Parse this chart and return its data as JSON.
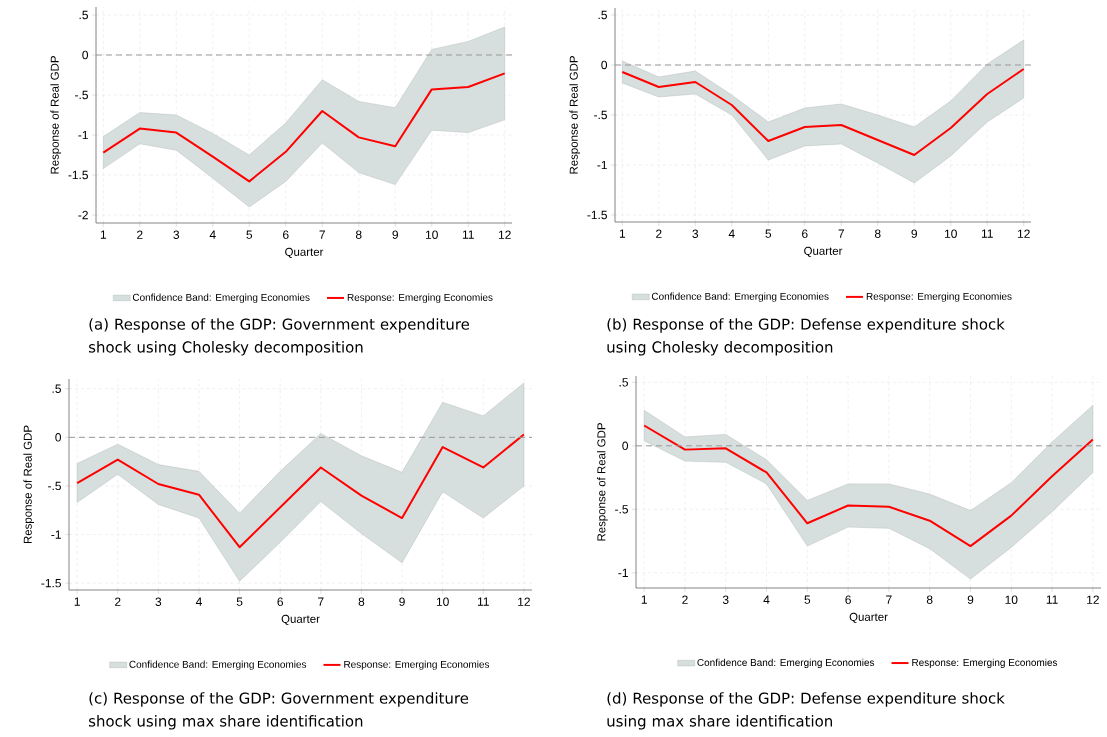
{
  "chart_data": [
    {
      "type": "line",
      "xlabel": "Quarter",
      "ylabel": "Response of Real GDP",
      "annotations": [
        "(a) Response of the GDP: Government expenditure shock using Cholesky decomposition"
      ],
      "x": [
        1,
        2,
        3,
        4,
        5,
        6,
        7,
        8,
        9,
        10,
        11,
        12
      ],
      "xlim": [
        0.8,
        12.2
      ],
      "xticks": [
        1,
        2,
        3,
        4,
        5,
        6,
        7,
        8,
        9,
        10,
        11,
        12
      ],
      "ylim": [
        -2.1,
        0.6
      ],
      "yticks": [
        {
          "value": -2,
          "label": "-2"
        },
        {
          "value": -1.5,
          "label": "-1.5"
        },
        {
          "value": -1,
          "label": "-1"
        },
        {
          "value": -0.5,
          "label": "-.5"
        },
        {
          "value": 0,
          "label": "0"
        },
        {
          "value": 0.5,
          "label": ".5"
        }
      ],
      "grid": true,
      "legend": "bottom",
      "ref_lines": [
        {
          "axis": "y",
          "value": 0,
          "color": "#999999",
          "line_style": "dashed"
        }
      ],
      "series": [
        {
          "type": "area",
          "name": "Confidence Band: Emerging Economies",
          "color": "#d6dfdd",
          "values": [
            null,
            null,
            null,
            null,
            null,
            null,
            null,
            null,
            null,
            null,
            null,
            null
          ],
          "lower": [
            -1.42,
            -1.11,
            -1.19,
            -1.54,
            -1.9,
            -1.58,
            -1.1,
            -1.47,
            -1.62,
            -0.94,
            -0.97,
            -0.81
          ],
          "upper": [
            -1.02,
            -0.72,
            -0.75,
            -0.98,
            -1.25,
            -0.85,
            -0.31,
            -0.58,
            -0.66,
            0.07,
            0.17,
            0.35
          ]
        },
        {
          "name": "Response: Emerging Economies",
          "color": "#ff0000",
          "values": [
            -1.22,
            -0.92,
            -0.97,
            -1.27,
            -1.58,
            -1.21,
            -0.7,
            -1.03,
            -1.14,
            -0.43,
            -0.4,
            -0.23
          ]
        }
      ]
    },
    {
      "type": "line",
      "xlabel": "Quarter",
      "ylabel": "Response of Real GDP",
      "annotations": [
        "(b) Response of the GDP: Defense expenditure shock using Cholesky decomposition"
      ],
      "x": [
        1,
        2,
        3,
        4,
        5,
        6,
        7,
        8,
        9,
        10,
        11,
        12
      ],
      "xlim": [
        0.8,
        12.2
      ],
      "xticks": [
        1,
        2,
        3,
        4,
        5,
        6,
        7,
        8,
        9,
        10,
        11,
        12
      ],
      "ylim": [
        -1.57,
        0.57
      ],
      "yticks": [
        {
          "value": -1.5,
          "label": "-1.5"
        },
        {
          "value": -1,
          "label": "-1"
        },
        {
          "value": -0.5,
          "label": "-.5"
        },
        {
          "value": 0,
          "label": "0"
        },
        {
          "value": 0.5,
          "label": ".5"
        }
      ],
      "grid": true,
      "legend": "bottom",
      "ref_lines": [
        {
          "axis": "y",
          "value": 0,
          "color": "#999999",
          "line_style": "dashed"
        }
      ],
      "series": [
        {
          "type": "area",
          "name": "Confidence Band: Emerging Economies",
          "color": "#d6dfdd",
          "values": [
            null,
            null,
            null,
            null,
            null,
            null,
            null,
            null,
            null,
            null,
            null,
            null
          ],
          "lower": [
            -0.18,
            -0.32,
            -0.29,
            -0.5,
            -0.95,
            -0.81,
            -0.79,
            -0.98,
            -1.18,
            -0.91,
            -0.57,
            -0.33
          ],
          "upper": [
            0.04,
            -0.12,
            -0.06,
            -0.3,
            -0.57,
            -0.43,
            -0.39,
            -0.5,
            -0.62,
            -0.36,
            0.01,
            0.25
          ]
        },
        {
          "name": "Response: Emerging Economies",
          "color": "#ff0000",
          "values": [
            -0.07,
            -0.22,
            -0.17,
            -0.4,
            -0.76,
            -0.62,
            -0.6,
            -0.75,
            -0.9,
            -0.63,
            -0.29,
            -0.04
          ]
        }
      ]
    },
    {
      "type": "line",
      "xlabel": "Quarter",
      "ylabel": "Response of Real GDP",
      "annotations": [
        "(c) Response of the GDP: Government expenditure shock using max share identification"
      ],
      "x": [
        1,
        2,
        3,
        4,
        5,
        6,
        7,
        8,
        9,
        10,
        11,
        12
      ],
      "xlim": [
        0.8,
        12.2
      ],
      "xticks": [
        1,
        2,
        3,
        4,
        5,
        6,
        7,
        8,
        9,
        10,
        11,
        12
      ],
      "ylim": [
        -1.57,
        0.6
      ],
      "yticks": [
        {
          "value": -1.5,
          "label": "-1.5"
        },
        {
          "value": -1,
          "label": "-1"
        },
        {
          "value": -0.5,
          "label": "-.5"
        },
        {
          "value": 0,
          "label": "0"
        },
        {
          "value": 0.5,
          "label": ".5"
        }
      ],
      "grid": true,
      "legend": "bottom",
      "ref_lines": [
        {
          "axis": "y",
          "value": 0,
          "color": "#999999",
          "line_style": "dashed"
        }
      ],
      "series": [
        {
          "type": "area",
          "name": "Confidence Band: Emerging Economies",
          "color": "#d6dfdd",
          "values": [
            null,
            null,
            null,
            null,
            null,
            null,
            null,
            null,
            null,
            null,
            null,
            null
          ],
          "lower": [
            -0.67,
            -0.38,
            -0.69,
            -0.83,
            -1.48,
            -1.08,
            -0.66,
            -0.99,
            -1.29,
            -0.56,
            -0.83,
            -0.5
          ],
          "upper": [
            -0.27,
            -0.07,
            -0.28,
            -0.35,
            -0.78,
            -0.35,
            0.04,
            -0.19,
            -0.36,
            0.36,
            0.22,
            0.56
          ]
        },
        {
          "name": "Response: Emerging Economies",
          "color": "#ff0000",
          "values": [
            -0.47,
            -0.23,
            -0.48,
            -0.59,
            -1.13,
            -0.72,
            -0.31,
            -0.6,
            -0.83,
            -0.1,
            -0.31,
            0.03
          ]
        }
      ]
    },
    {
      "type": "line",
      "xlabel": "Quarter",
      "ylabel": "Response of Real GDP",
      "annotations": [
        "(d) Response of the GDP: Defense expenditure shock using max share identification"
      ],
      "x": [
        1,
        2,
        3,
        4,
        5,
        6,
        7,
        8,
        9,
        10,
        11,
        12
      ],
      "xlim": [
        0.8,
        12.2
      ],
      "xticks": [
        1,
        2,
        3,
        4,
        5,
        6,
        7,
        8,
        9,
        10,
        11,
        12
      ],
      "ylim": [
        -1.12,
        0.55
      ],
      "yticks": [
        {
          "value": -1,
          "label": "-1"
        },
        {
          "value": -0.5,
          "label": "-.5"
        },
        {
          "value": 0,
          "label": "0"
        },
        {
          "value": 0.5,
          "label": ".5"
        }
      ],
      "grid": true,
      "legend": "bottom",
      "ref_lines": [
        {
          "axis": "y",
          "value": 0,
          "color": "#999999",
          "line_style": "dashed"
        }
      ],
      "series": [
        {
          "type": "area",
          "name": "Confidence Band: Emerging Economies",
          "color": "#d6dfdd",
          "values": [
            null,
            null,
            null,
            null,
            null,
            null,
            null,
            null,
            null,
            null,
            null,
            null
          ],
          "lower": [
            0.04,
            -0.12,
            -0.13,
            -0.3,
            -0.79,
            -0.64,
            -0.65,
            -0.81,
            -1.05,
            -0.8,
            -0.52,
            -0.21
          ],
          "upper": [
            0.28,
            0.07,
            0.09,
            -0.11,
            -0.43,
            -0.3,
            -0.3,
            -0.38,
            -0.51,
            -0.29,
            0.03,
            0.32
          ]
        },
        {
          "name": "Response: Emerging Economies",
          "color": "#ff0000",
          "values": [
            0.16,
            -0.03,
            -0.02,
            -0.21,
            -0.61,
            -0.47,
            -0.48,
            -0.59,
            -0.79,
            -0.55,
            -0.24,
            0.05
          ]
        }
      ]
    }
  ]
}
